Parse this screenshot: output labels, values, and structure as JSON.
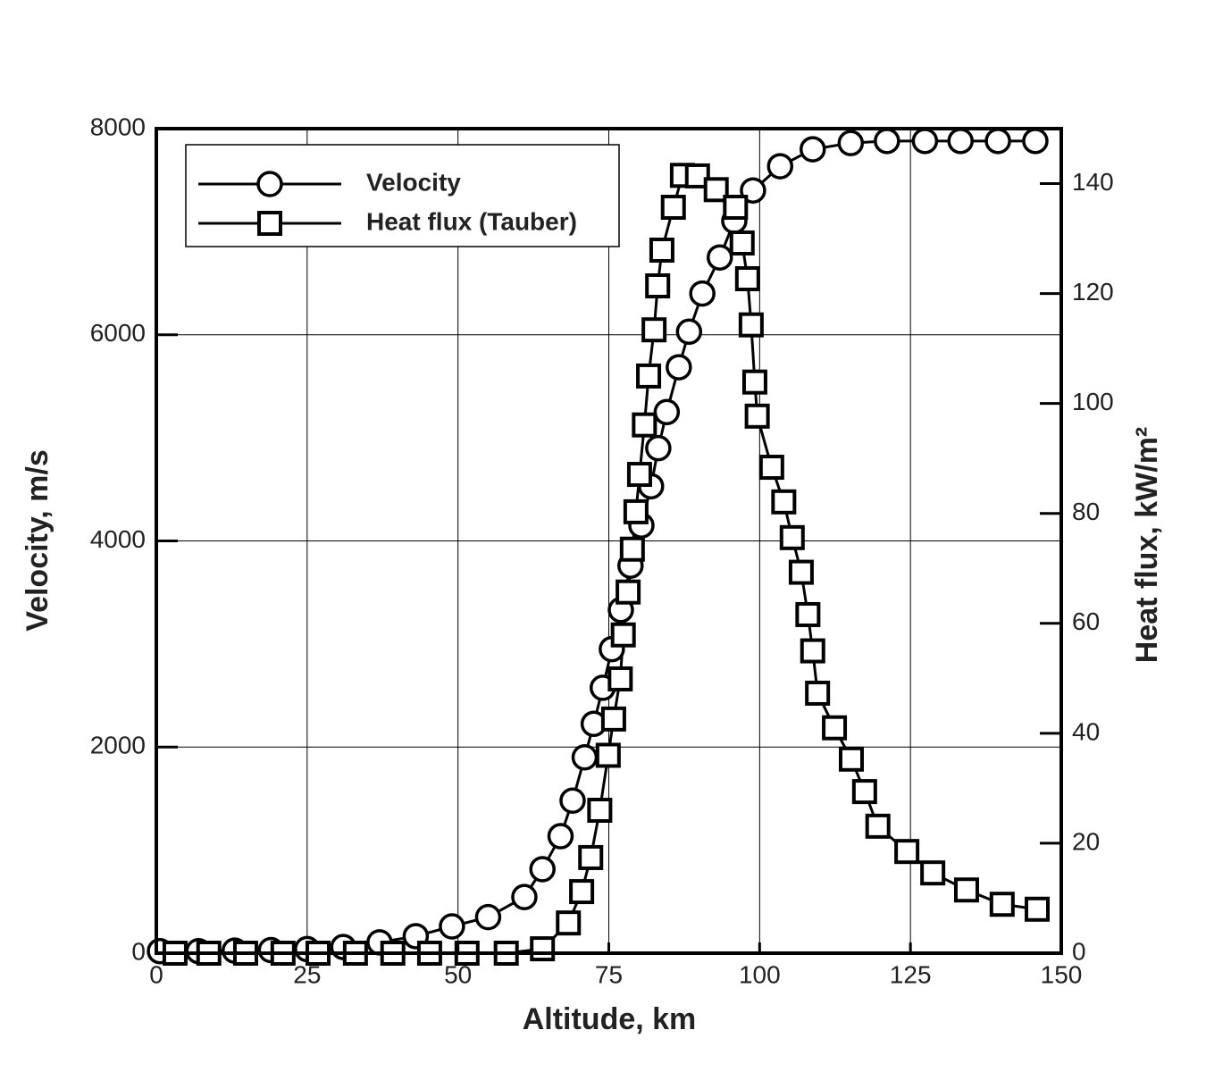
{
  "chart_data": {
    "type": "line",
    "xlabel": "Altitude, km",
    "ylabel": "Velocity, m/s",
    "y2label": "Heat flux, kW/m²",
    "xlim": [
      0,
      150
    ],
    "xticks": [
      0,
      25,
      50,
      75,
      100,
      125,
      150
    ],
    "ylim": [
      0,
      8000
    ],
    "yticks": [
      0,
      2000,
      4000,
      6000,
      8000
    ],
    "y2lim": [
      0,
      150
    ],
    "y2ticks": [
      0,
      20,
      40,
      60,
      80,
      100,
      120,
      140
    ],
    "grid": true,
    "legend": "upper left",
    "series": [
      {
        "name": "Velocity",
        "color": "#000000",
        "marker": "circle",
        "x": [
          0.6,
          7,
          13,
          19,
          25,
          31,
          37,
          43,
          49,
          55,
          61,
          64,
          67,
          69,
          71,
          72.5,
          74,
          75.5,
          77,
          78.6,
          80.4,
          82,
          83.2,
          84.6,
          86.6,
          88.3,
          90.5,
          93.4,
          95.8,
          98.9,
          103.4,
          108.8,
          115.1,
          121.1,
          127.4,
          133.3,
          139.5,
          145.7
        ],
        "values": [
          20,
          20,
          25,
          30,
          40,
          60,
          105,
          165,
          260,
          350,
          545,
          815,
          1135,
          1480,
          1900,
          2225,
          2575,
          2950,
          3330,
          3760,
          4150,
          4530,
          4900,
          5250,
          5685,
          6030,
          6400,
          6750,
          7105,
          7400,
          7635,
          7800,
          7860,
          7880,
          7880,
          7880,
          7880,
          7880
        ]
      },
      {
        "name": "Heat flux (Tauber)",
        "color": "#000000",
        "marker": "square",
        "axis": "y2",
        "x": [
          3.1,
          8.7,
          14.8,
          21,
          26.8,
          33,
          39.2,
          45.3,
          51.5,
          58,
          64,
          68.3,
          70.5,
          72,
          73.5,
          74.9,
          75.8,
          76.9,
          77.4,
          78.2,
          78.9,
          79.5,
          80.1,
          80.9,
          81.6,
          82.5,
          83.1,
          83.8,
          85.7,
          87.2,
          89.7,
          92.8,
          96,
          97.1,
          98,
          98.6,
          99.2,
          99.6,
          102,
          104,
          105.4,
          106.9,
          108,
          108.8,
          109.6,
          112.4,
          115.2,
          117.4,
          119.6,
          124.4,
          128.7,
          134.3,
          140.2,
          146
        ],
        "values": [
          0,
          0,
          0,
          0,
          0,
          0,
          0,
          0,
          0,
          0,
          0.8,
          5.5,
          11.2,
          17.4,
          26,
          36,
          42.6,
          49.9,
          57.9,
          65.7,
          73.5,
          80.3,
          87.1,
          96.1,
          105,
          113.4,
          121.4,
          127.9,
          135.7,
          141.5,
          141.4,
          138.9,
          135.7,
          129.2,
          122.7,
          114.3,
          103.9,
          97.7,
          88.4,
          82.1,
          75.6,
          69.3,
          61.6,
          55,
          47.3,
          41,
          35.3,
          29.4,
          23.1,
          18.5,
          14.6,
          11.5,
          8.9,
          8
        ]
      }
    ]
  }
}
